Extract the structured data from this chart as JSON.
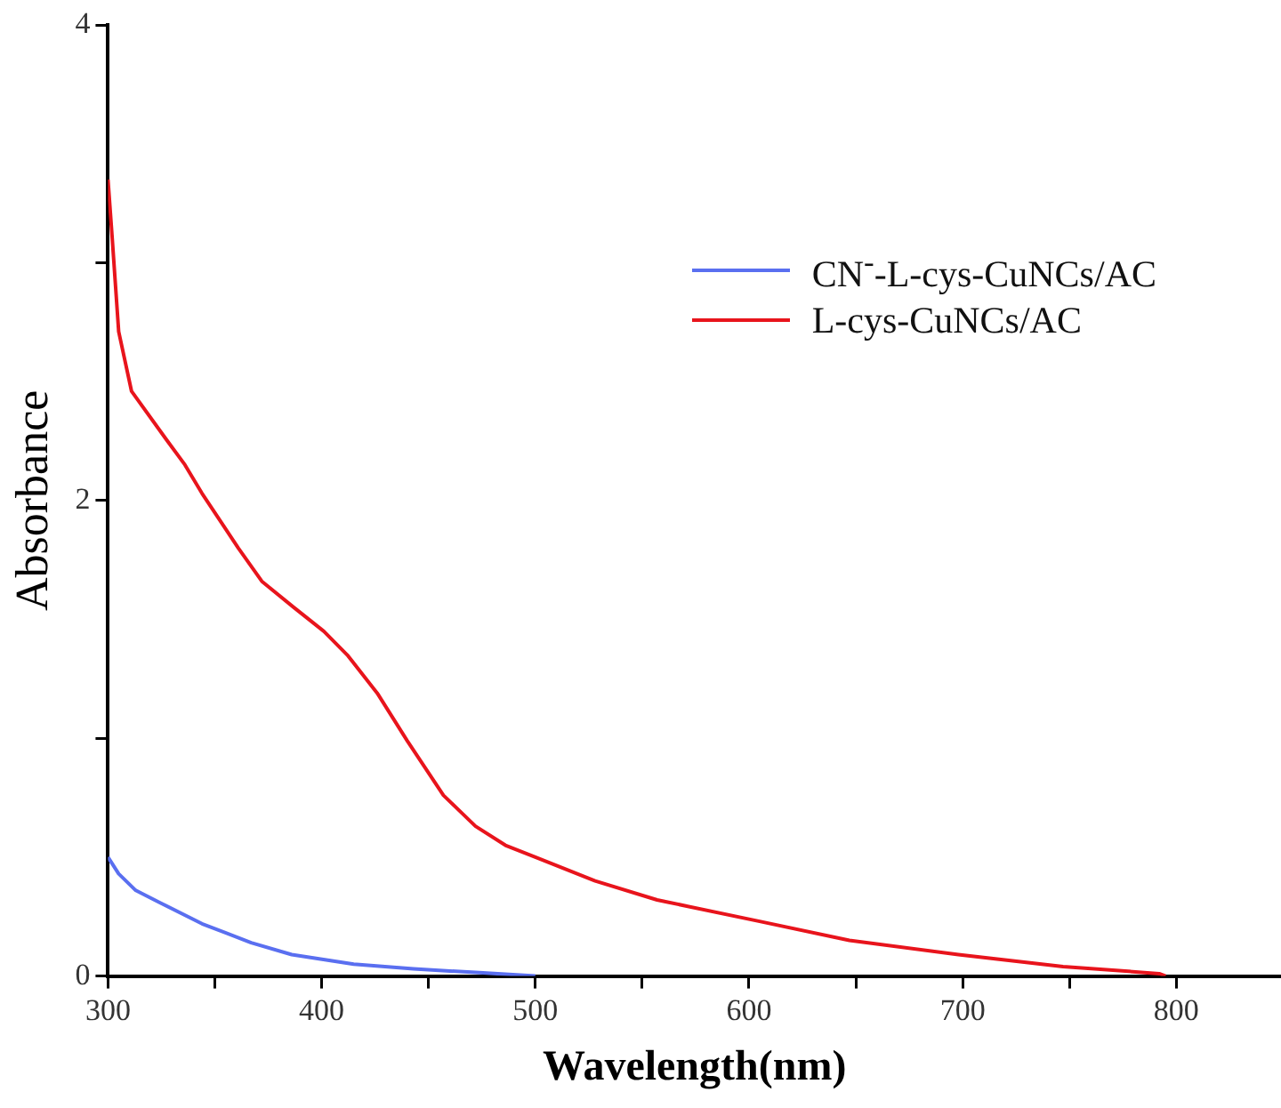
{
  "chart_data": {
    "type": "line",
    "xlabel": "Wavelength(nm)",
    "ylabel": "Absorbance",
    "xlim": [
      300,
      849
    ],
    "ylim": [
      0,
      4
    ],
    "xticks": [
      300,
      {
        "value": 350,
        "label": null
      },
      400,
      {
        "value": 450,
        "label": null
      },
      500,
      {
        "value": 550,
        "label": null
      },
      600,
      {
        "value": 650,
        "label": null
      },
      700,
      {
        "value": 750,
        "label": null
      },
      800
    ],
    "yticks": [
      0,
      {
        "value": 1,
        "label": null
      },
      2,
      {
        "value": 3,
        "label": null
      },
      4
    ],
    "grid": false,
    "legend": "top right",
    "marker": "none",
    "line_style": "solid",
    "series": [
      {
        "name": "CN$^{-}$-L-cys-CuNCs/AC",
        "color": "#5a6ff0",
        "x": [
          300,
          305,
          313,
          324,
          344,
          367,
          386,
          415,
          443,
          472,
          500
        ],
        "values": [
          0.5,
          0.43,
          0.36,
          0.31,
          0.22,
          0.14,
          0.09,
          0.05,
          0.03,
          0.015,
          0
        ]
      },
      {
        "name": "L-cys-CuNCs/AC",
        "color": "#e8141c",
        "x": [
          300,
          302,
          305,
          311,
          327,
          336,
          344,
          361,
          372,
          387,
          401,
          412,
          426,
          440,
          457,
          472,
          486,
          500,
          528,
          557,
          605,
          647,
          698,
          747,
          792,
          795
        ],
        "values": [
          3.35,
          3.1,
          2.71,
          2.46,
          2.26,
          2.15,
          2.03,
          1.8,
          1.66,
          1.55,
          1.45,
          1.35,
          1.19,
          0.99,
          0.76,
          0.63,
          0.55,
          0.5,
          0.4,
          0.32,
          0.23,
          0.15,
          0.09,
          0.04,
          0.01,
          0
        ]
      }
    ]
  }
}
